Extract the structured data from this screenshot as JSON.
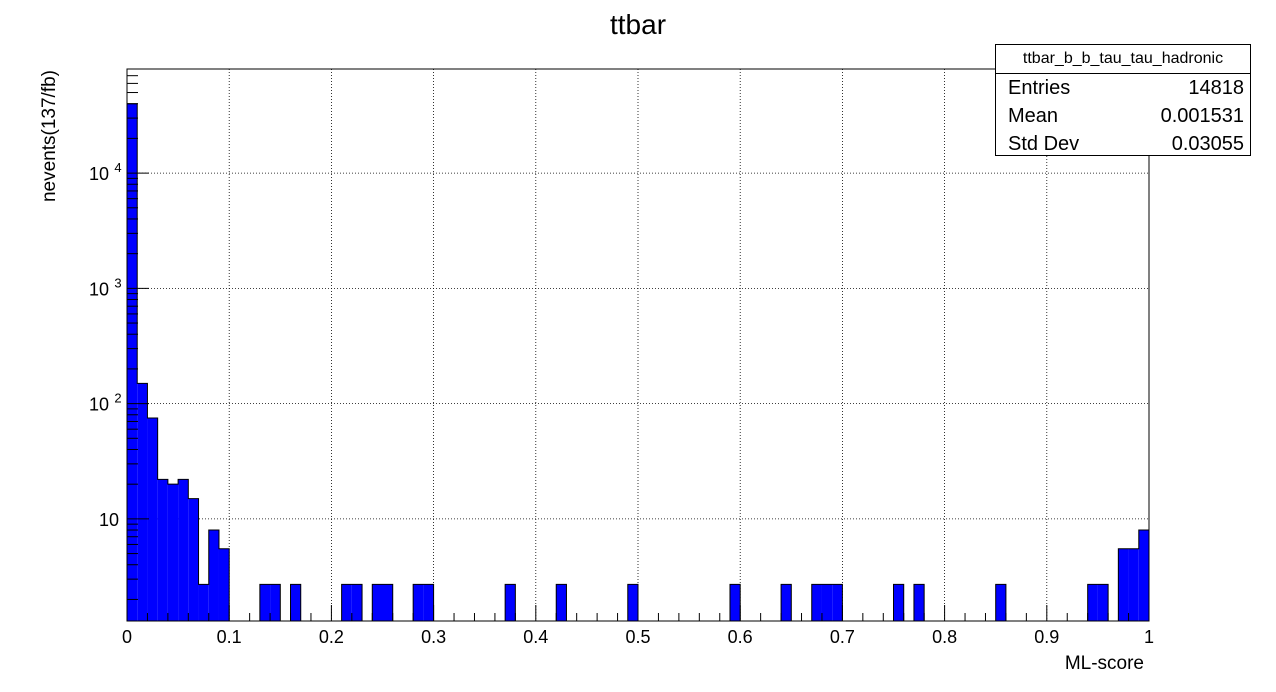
{
  "chart_data": {
    "type": "bar",
    "title": "ttbar",
    "xlabel": "ML-score",
    "ylabel": "nevents(137/fb)",
    "xlim": [
      0,
      1
    ],
    "ylim": [
      1.3,
      80000
    ],
    "yscale": "log",
    "grid": true,
    "bin_width": 0.01,
    "x_ticks": [
      "0",
      "0.1",
      "0.2",
      "0.3",
      "0.4",
      "0.5",
      "0.6",
      "0.7",
      "0.8",
      "0.9",
      "1"
    ],
    "y_ticks": [
      {
        "value": 10,
        "label": "10",
        "exp": ""
      },
      {
        "value": 100,
        "label": "10",
        "exp": "2"
      },
      {
        "value": 1000,
        "label": "10",
        "exp": "3"
      },
      {
        "value": 10000,
        "label": "10",
        "exp": "4"
      }
    ],
    "bins": [
      {
        "x": 0.0,
        "y": 40000
      },
      {
        "x": 0.01,
        "y": 150
      },
      {
        "x": 0.02,
        "y": 75
      },
      {
        "x": 0.03,
        "y": 22
      },
      {
        "x": 0.04,
        "y": 20
      },
      {
        "x": 0.05,
        "y": 22
      },
      {
        "x": 0.06,
        "y": 15
      },
      {
        "x": 0.07,
        "y": 2.7
      },
      {
        "x": 0.08,
        "y": 8
      },
      {
        "x": 0.09,
        "y": 5.5
      },
      {
        "x": 0.13,
        "y": 2.7
      },
      {
        "x": 0.14,
        "y": 2.7
      },
      {
        "x": 0.16,
        "y": 2.7
      },
      {
        "x": 0.21,
        "y": 2.7
      },
      {
        "x": 0.22,
        "y": 2.7
      },
      {
        "x": 0.24,
        "y": 2.7
      },
      {
        "x": 0.25,
        "y": 2.7
      },
      {
        "x": 0.28,
        "y": 2.7
      },
      {
        "x": 0.29,
        "y": 2.7
      },
      {
        "x": 0.37,
        "y": 2.7
      },
      {
        "x": 0.42,
        "y": 2.7
      },
      {
        "x": 0.49,
        "y": 2.7
      },
      {
        "x": 0.59,
        "y": 2.7
      },
      {
        "x": 0.64,
        "y": 2.7
      },
      {
        "x": 0.67,
        "y": 2.7
      },
      {
        "x": 0.68,
        "y": 2.7
      },
      {
        "x": 0.69,
        "y": 2.7
      },
      {
        "x": 0.75,
        "y": 2.7
      },
      {
        "x": 0.77,
        "y": 2.7
      },
      {
        "x": 0.85,
        "y": 2.7
      },
      {
        "x": 0.94,
        "y": 2.7
      },
      {
        "x": 0.95,
        "y": 2.7
      },
      {
        "x": 0.97,
        "y": 5.5
      },
      {
        "x": 0.98,
        "y": 5.5
      },
      {
        "x": 0.99,
        "y": 8
      }
    ],
    "bar_color": "#0000ff"
  },
  "stats": {
    "name": "ttbar_b_b_tau_tau_hadronic",
    "entries_label": "Entries",
    "entries_value": "14818",
    "mean_label": "Mean",
    "mean_value": "0.001531",
    "std_label": "Std Dev",
    "std_value": "0.03055"
  }
}
